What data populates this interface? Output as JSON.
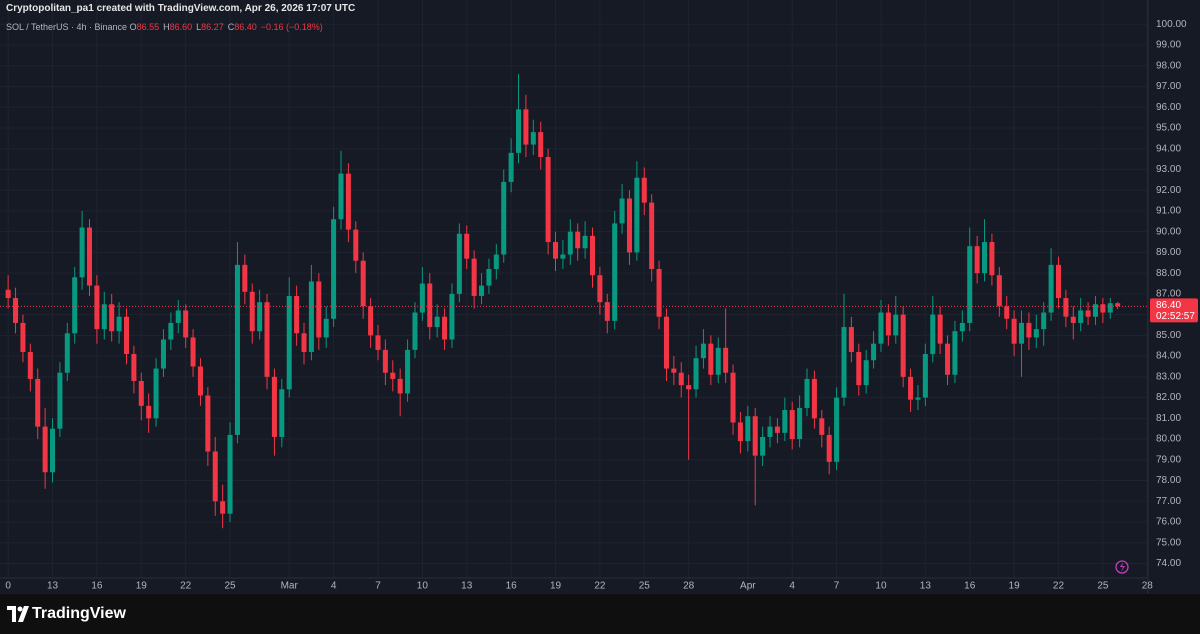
{
  "header": {
    "attribution": "Cryptopolitan_pa1 created with TradingView.com, Apr 26, 2026 17:07 UTC"
  },
  "footer": {
    "brand": "TradingView"
  },
  "chart_data": {
    "type": "candlestick",
    "symbol": "SOL / TetherUS · 4h · Binance",
    "legend": [
      {
        "key": "O",
        "value": "86.55"
      },
      {
        "key": "H",
        "value": "86.60"
      },
      {
        "key": "L",
        "value": "86.27"
      },
      {
        "key": "C",
        "value": "86.40"
      }
    ],
    "change": "−0.16 (−0.18%)",
    "last_price": {
      "value": 86.4,
      "label": "86.40"
    },
    "countdown": "02:52:57",
    "up_color": "#089981",
    "down_color": "#f23645",
    "grid": true,
    "ylim": [
      73.3,
      100.4
    ],
    "yticks": [
      {
        "value": 74,
        "label": "74.00"
      },
      {
        "value": 75,
        "label": "75.00"
      },
      {
        "value": 76,
        "label": "76.00"
      },
      {
        "value": 77,
        "label": "77.00"
      },
      {
        "value": 78,
        "label": "78.00"
      },
      {
        "value": 79,
        "label": "79.00"
      },
      {
        "value": 80,
        "label": "80.00"
      },
      {
        "value": 81,
        "label": "81.00"
      },
      {
        "value": 82,
        "label": "82.00"
      },
      {
        "value": 83,
        "label": "83.00"
      },
      {
        "value": 84,
        "label": "84.00"
      },
      {
        "value": 85,
        "label": "85.00"
      },
      {
        "value": 86,
        "label": "86.00"
      },
      {
        "value": 87,
        "label": "87.00"
      },
      {
        "value": 88,
        "label": "88.00"
      },
      {
        "value": 89,
        "label": "89.00"
      },
      {
        "value": 90,
        "label": "90.00"
      },
      {
        "value": 91,
        "label": "91.00"
      },
      {
        "value": 92,
        "label": "92.00"
      },
      {
        "value": 93,
        "label": "93.00"
      },
      {
        "value": 94,
        "label": "94.00"
      },
      {
        "value": 95,
        "label": "95.00"
      },
      {
        "value": 96,
        "label": "96.00"
      },
      {
        "value": 97,
        "label": "97.00"
      },
      {
        "value": 98,
        "label": "98.00"
      },
      {
        "value": 99,
        "label": "99.00"
      },
      {
        "value": 100,
        "label": "100.00"
      }
    ],
    "xlim": [
      -1.1,
      154.1
    ],
    "xticks": [
      {
        "value": 0,
        "label": "0"
      },
      {
        "value": 6,
        "label": "13"
      },
      {
        "value": 12,
        "label": "16"
      },
      {
        "value": 18,
        "label": "19"
      },
      {
        "value": 24,
        "label": "22"
      },
      {
        "value": 30,
        "label": "25"
      },
      {
        "value": 38,
        "label": "Mar"
      },
      {
        "value": 44,
        "label": "4"
      },
      {
        "value": 50,
        "label": "7"
      },
      {
        "value": 56,
        "label": "10"
      },
      {
        "value": 62,
        "label": "13"
      },
      {
        "value": 68,
        "label": "16"
      },
      {
        "value": 74,
        "label": "19"
      },
      {
        "value": 80,
        "label": "22"
      },
      {
        "value": 86,
        "label": "25"
      },
      {
        "value": 92,
        "label": "28"
      },
      {
        "value": 100,
        "label": "Apr"
      },
      {
        "value": 106,
        "label": "4"
      },
      {
        "value": 112,
        "label": "7"
      },
      {
        "value": 118,
        "label": "10"
      },
      {
        "value": 124,
        "label": "13"
      },
      {
        "value": 130,
        "label": "16"
      },
      {
        "value": 136,
        "label": "19"
      },
      {
        "value": 142,
        "label": "22"
      },
      {
        "value": 148,
        "label": "25"
      },
      {
        "value": 154,
        "label": "28"
      }
    ],
    "ohlc": [
      [
        87.2,
        87.9,
        86.3,
        86.8
      ],
      [
        86.8,
        87.3,
        85.1,
        85.6
      ],
      [
        85.6,
        86.0,
        83.7,
        84.2
      ],
      [
        84.2,
        84.6,
        82.3,
        82.9
      ],
      [
        82.9,
        83.4,
        80.0,
        80.6
      ],
      [
        80.6,
        81.5,
        77.6,
        78.4
      ],
      [
        78.4,
        81.0,
        77.9,
        80.5
      ],
      [
        80.5,
        83.7,
        80.1,
        83.2
      ],
      [
        83.2,
        85.6,
        82.8,
        85.1
      ],
      [
        85.1,
        88.3,
        84.6,
        87.8
      ],
      [
        87.8,
        91.0,
        87.2,
        90.2
      ],
      [
        90.2,
        90.6,
        86.9,
        87.4
      ],
      [
        87.4,
        87.9,
        84.6,
        85.3
      ],
      [
        85.3,
        87.1,
        84.8,
        86.5
      ],
      [
        86.5,
        87.0,
        84.7,
        85.2
      ],
      [
        85.2,
        86.6,
        84.6,
        85.9
      ],
      [
        85.9,
        86.3,
        83.6,
        84.1
      ],
      [
        84.1,
        84.5,
        82.2,
        82.8
      ],
      [
        82.8,
        83.2,
        80.9,
        81.6
      ],
      [
        81.6,
        82.2,
        80.3,
        81.0
      ],
      [
        81.0,
        83.9,
        80.6,
        83.4
      ],
      [
        83.4,
        85.3,
        83.0,
        84.8
      ],
      [
        84.8,
        86.1,
        84.3,
        85.6
      ],
      [
        85.6,
        86.7,
        85.1,
        86.2
      ],
      [
        86.2,
        86.5,
        84.4,
        84.9
      ],
      [
        84.9,
        85.3,
        83.0,
        83.5
      ],
      [
        83.5,
        83.9,
        81.6,
        82.1
      ],
      [
        82.1,
        82.5,
        78.7,
        79.4
      ],
      [
        79.4,
        80.1,
        76.3,
        77.0
      ],
      [
        77.0,
        77.8,
        75.7,
        76.4
      ],
      [
        76.4,
        80.8,
        76.0,
        80.2
      ],
      [
        80.2,
        89.5,
        79.8,
        88.4
      ],
      [
        88.4,
        88.9,
        86.5,
        87.1
      ],
      [
        87.1,
        87.5,
        84.6,
        85.2
      ],
      [
        85.2,
        87.2,
        84.8,
        86.6
      ],
      [
        86.6,
        87.0,
        82.4,
        83.0
      ],
      [
        83.0,
        83.4,
        79.2,
        80.1
      ],
      [
        80.1,
        82.9,
        79.6,
        82.4
      ],
      [
        82.4,
        87.8,
        82.0,
        86.9
      ],
      [
        86.9,
        87.4,
        84.5,
        85.1
      ],
      [
        85.1,
        85.6,
        83.6,
        84.2
      ],
      [
        84.2,
        88.4,
        83.8,
        87.6
      ],
      [
        87.6,
        88.0,
        84.3,
        84.9
      ],
      [
        84.9,
        86.4,
        84.4,
        85.8
      ],
      [
        85.8,
        91.2,
        85.4,
        90.6
      ],
      [
        90.6,
        93.9,
        90.1,
        92.8
      ],
      [
        92.8,
        93.3,
        89.5,
        90.1
      ],
      [
        90.1,
        90.5,
        88.0,
        88.6
      ],
      [
        88.6,
        89.0,
        85.8,
        86.4
      ],
      [
        86.4,
        86.8,
        84.4,
        85.0
      ],
      [
        85.0,
        85.5,
        83.8,
        84.3
      ],
      [
        84.3,
        84.8,
        82.6,
        83.2
      ],
      [
        83.2,
        83.8,
        82.3,
        82.9
      ],
      [
        82.9,
        83.4,
        81.1,
        82.2
      ],
      [
        82.2,
        84.8,
        81.8,
        84.3
      ],
      [
        84.3,
        86.6,
        83.9,
        86.1
      ],
      [
        86.1,
        88.3,
        85.7,
        87.5
      ],
      [
        87.5,
        88.0,
        84.8,
        85.4
      ],
      [
        85.4,
        86.5,
        84.9,
        85.9
      ],
      [
        85.9,
        86.3,
        84.3,
        84.8
      ],
      [
        84.8,
        87.5,
        84.4,
        87.0
      ],
      [
        87.0,
        90.4,
        86.6,
        89.9
      ],
      [
        89.9,
        90.3,
        88.2,
        88.7
      ],
      [
        88.7,
        89.1,
        86.3,
        86.9
      ],
      [
        86.9,
        88.0,
        86.5,
        87.4
      ],
      [
        87.4,
        88.7,
        87.0,
        88.2
      ],
      [
        88.2,
        89.4,
        87.7,
        88.9
      ],
      [
        88.9,
        93.0,
        88.5,
        92.4
      ],
      [
        92.4,
        94.5,
        91.9,
        93.8
      ],
      [
        93.8,
        97.6,
        93.3,
        95.9
      ],
      [
        95.9,
        96.6,
        93.6,
        94.2
      ],
      [
        94.2,
        95.4,
        93.7,
        94.8
      ],
      [
        94.8,
        95.3,
        93.0,
        93.6
      ],
      [
        93.6,
        94.0,
        88.9,
        89.5
      ],
      [
        89.5,
        90.0,
        88.1,
        88.7
      ],
      [
        88.7,
        89.6,
        88.2,
        88.9
      ],
      [
        88.9,
        90.6,
        88.4,
        90.0
      ],
      [
        90.0,
        90.4,
        88.6,
        89.2
      ],
      [
        89.2,
        90.5,
        88.7,
        89.8
      ],
      [
        89.8,
        90.2,
        87.3,
        87.9
      ],
      [
        87.9,
        88.3,
        86.0,
        86.6
      ],
      [
        86.6,
        87.0,
        85.1,
        85.7
      ],
      [
        85.7,
        91.0,
        85.3,
        90.4
      ],
      [
        90.4,
        92.3,
        89.9,
        91.6
      ],
      [
        91.6,
        92.0,
        88.4,
        89.0
      ],
      [
        89.0,
        93.4,
        88.6,
        92.6
      ],
      [
        92.6,
        93.1,
        90.8,
        91.4
      ],
      [
        91.4,
        91.8,
        87.6,
        88.2
      ],
      [
        88.2,
        88.6,
        85.3,
        85.9
      ],
      [
        85.9,
        86.3,
        82.8,
        83.4
      ],
      [
        83.4,
        84.0,
        82.6,
        83.2
      ],
      [
        83.2,
        83.7,
        82.0,
        82.6
      ],
      [
        82.6,
        83.1,
        79.0,
        82.4
      ],
      [
        82.4,
        84.5,
        82.0,
        83.9
      ],
      [
        83.9,
        85.3,
        83.4,
        84.6
      ],
      [
        84.6,
        85.0,
        82.6,
        83.1
      ],
      [
        83.1,
        84.9,
        82.7,
        84.4
      ],
      [
        84.4,
        86.3,
        82.7,
        83.2
      ],
      [
        83.2,
        83.6,
        80.2,
        80.8
      ],
      [
        80.8,
        81.3,
        79.3,
        79.9
      ],
      [
        79.9,
        81.6,
        79.4,
        81.1
      ],
      [
        81.1,
        81.5,
        76.8,
        79.2
      ],
      [
        79.2,
        80.6,
        78.7,
        80.1
      ],
      [
        80.1,
        81.1,
        79.6,
        80.6
      ],
      [
        80.6,
        81.0,
        79.8,
        80.3
      ],
      [
        80.3,
        82.0,
        79.9,
        81.4
      ],
      [
        81.4,
        81.8,
        79.5,
        80.0
      ],
      [
        80.0,
        82.1,
        79.6,
        81.5
      ],
      [
        81.5,
        83.4,
        81.1,
        82.9
      ],
      [
        82.9,
        83.3,
        80.5,
        81.0
      ],
      [
        81.0,
        81.4,
        79.6,
        80.2
      ],
      [
        80.2,
        80.6,
        78.3,
        78.9
      ],
      [
        78.9,
        82.5,
        78.5,
        82.0
      ],
      [
        82.0,
        87.0,
        81.6,
        85.4
      ],
      [
        85.4,
        85.9,
        83.7,
        84.2
      ],
      [
        84.2,
        84.6,
        82.1,
        82.6
      ],
      [
        82.6,
        84.3,
        82.2,
        83.8
      ],
      [
        83.8,
        85.2,
        83.4,
        84.6
      ],
      [
        84.6,
        86.7,
        84.2,
        86.1
      ],
      [
        86.1,
        86.5,
        84.5,
        85.0
      ],
      [
        85.0,
        86.9,
        84.6,
        86.0
      ],
      [
        86.0,
        86.4,
        82.5,
        83.0
      ],
      [
        83.0,
        83.4,
        81.3,
        81.9
      ],
      [
        81.9,
        82.6,
        81.4,
        82.0
      ],
      [
        82.0,
        84.6,
        81.6,
        84.1
      ],
      [
        84.1,
        86.9,
        83.7,
        86.0
      ],
      [
        86.0,
        86.4,
        84.1,
        84.6
      ],
      [
        84.6,
        85.0,
        82.6,
        83.1
      ],
      [
        83.1,
        85.7,
        82.7,
        85.2
      ],
      [
        85.2,
        86.2,
        84.7,
        85.6
      ],
      [
        85.6,
        90.2,
        85.2,
        89.3
      ],
      [
        89.3,
        89.8,
        87.5,
        88.0
      ],
      [
        88.0,
        90.6,
        87.6,
        89.5
      ],
      [
        89.5,
        89.9,
        87.4,
        87.9
      ],
      [
        87.9,
        88.3,
        85.9,
        86.4
      ],
      [
        86.4,
        86.9,
        85.3,
        85.8
      ],
      [
        85.8,
        86.2,
        84.0,
        84.6
      ],
      [
        84.6,
        86.2,
        83.0,
        85.6
      ],
      [
        85.6,
        86.1,
        84.3,
        84.9
      ],
      [
        84.9,
        86.0,
        84.4,
        85.3
      ],
      [
        85.3,
        86.6,
        84.5,
        86.1
      ],
      [
        86.1,
        89.2,
        85.7,
        88.4
      ],
      [
        88.4,
        88.8,
        86.3,
        86.8
      ],
      [
        86.8,
        87.2,
        85.4,
        85.9
      ],
      [
        85.9,
        86.4,
        84.8,
        85.6
      ],
      [
        85.6,
        86.8,
        85.2,
        86.2
      ],
      [
        86.2,
        86.6,
        85.5,
        85.9
      ],
      [
        85.9,
        86.9,
        85.5,
        86.5
      ],
      [
        86.5,
        86.8,
        85.6,
        86.1
      ],
      [
        86.1,
        86.8,
        85.8,
        86.55
      ],
      [
        86.55,
        86.6,
        86.27,
        86.4
      ]
    ]
  }
}
